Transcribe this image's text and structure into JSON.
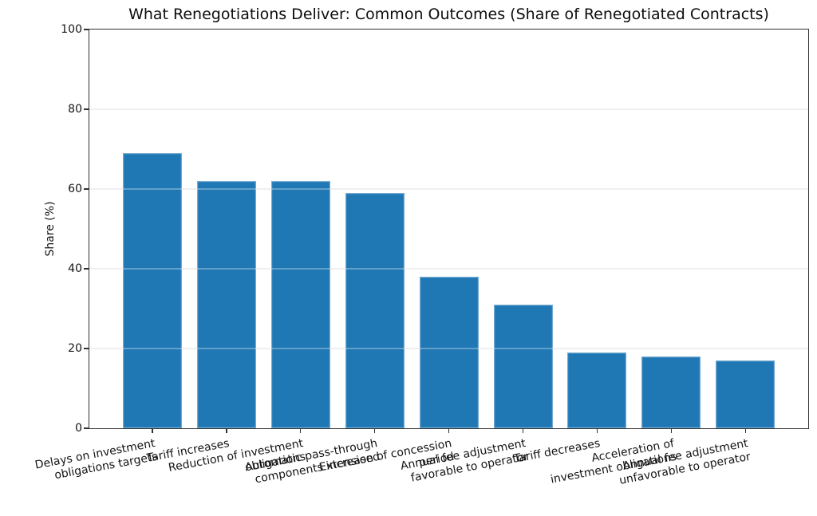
{
  "figure": {
    "background": "#ffffff",
    "text_color": "#141414",
    "spine_color": "#323232",
    "gridline_color": "#e9e9e9"
  },
  "chart_data": {
    "type": "bar",
    "title": "What Renegotiations Deliver: Common Outcomes (Share of Renegotiated Contracts)",
    "xlabel": "",
    "ylabel": "Share (%)",
    "ylim": [
      0,
      100
    ],
    "yticks": [
      0,
      20,
      40,
      60,
      80,
      100
    ],
    "grid": "horizontal gridlines at y-ticks, light gray, drawn over bars",
    "legend": "none",
    "bar_color": "#1f77b4",
    "bar_edge": "lighter blue 1px rim",
    "x_tick_rotation_deg": 10.5,
    "categories": [
      "Delays on investment\nobligations targets",
      "Tariff increases",
      "Reduction of investment\nobligations",
      "Automatic pass-through\ncomponents increased",
      "Extension of concession\nperiod",
      "Annual fee adjustment\nfavorable to operator",
      "Tariff decreases",
      "Acceleration of\ninvestment obligations",
      "Annual fee adjustment\nunfavorable to operator"
    ],
    "values": [
      69,
      62,
      62,
      59,
      38,
      31,
      19,
      18,
      17
    ]
  }
}
